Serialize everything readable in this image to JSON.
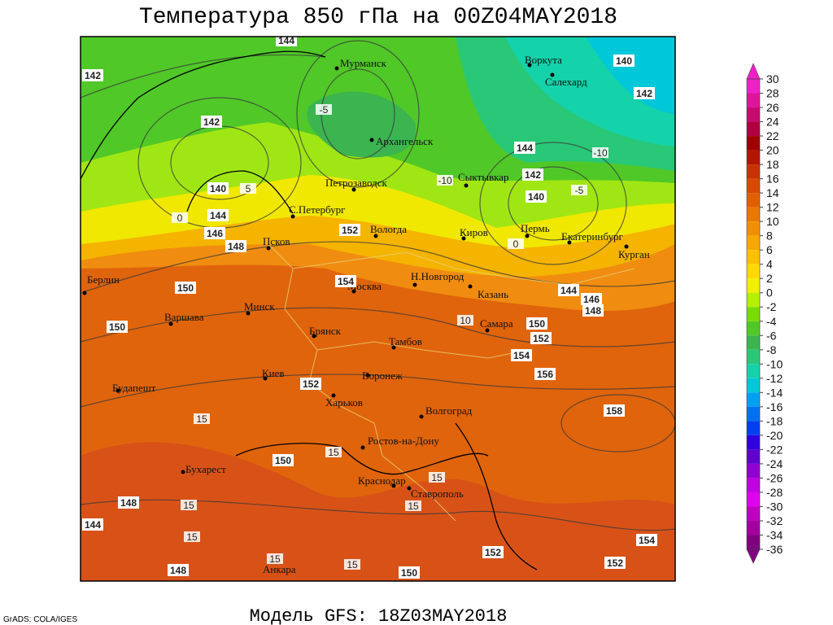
{
  "header": {
    "title": "Температура 850 гПа на 00Z04MAY2018"
  },
  "footer": {
    "model": "Модель GFS: 18Z03MAY2018",
    "credit": "GrADS: COLA/IGES"
  },
  "colorbar": {
    "ticks": [
      30,
      28,
      26,
      24,
      22,
      20,
      18,
      16,
      14,
      12,
      10,
      8,
      6,
      4,
      2,
      0,
      -2,
      -4,
      -6,
      -8,
      -10,
      -12,
      -14,
      -16,
      -18,
      -20,
      -22,
      -24,
      -26,
      -28,
      -30,
      -32,
      -34,
      -36
    ],
    "colors": [
      "#f020c8",
      "#e0149a",
      "#c80a6e",
      "#b00040",
      "#a00000",
      "#b41400",
      "#c83200",
      "#d74a00",
      "#e06000",
      "#e87800",
      "#f09000",
      "#f8a800",
      "#ffc000",
      "#ffd800",
      "#f0f000",
      "#b4f000",
      "#78dc00",
      "#50c828",
      "#3cb450",
      "#28c878",
      "#14d2aa",
      "#00c8d8",
      "#00a0f0",
      "#0070f0",
      "#0040f0",
      "#3000e0",
      "#6000d0",
      "#9000d0",
      "#c000e0",
      "#e000f0",
      "#c000c0",
      "#a000a0",
      "#800080"
    ]
  },
  "cities": [
    "Мурманск",
    "Воркута",
    "Салехард",
    "Архангельск",
    "Петрозаводск",
    "Сыктывкар",
    "С.Петербург",
    "Вологда",
    "Киров",
    "Пермь",
    "Екатеринбург",
    "Курган",
    "Псков",
    "Берлин",
    "Н.Новгород",
    "Москва",
    "Казань",
    "Минск",
    "Варшава",
    "Самара",
    "Брянск",
    "Тамбов",
    "Киев",
    "Воронеж",
    "Будапешт",
    "Харьков",
    "Волгоград",
    "Ростов-на-Дону",
    "Бухарест",
    "Краснодар",
    "Ставрополь",
    "Анкара"
  ],
  "height_labels": [
    142,
    144,
    140,
    142,
    142,
    144,
    142,
    140,
    140,
    144,
    146,
    148,
    152,
    154,
    150,
    144,
    146,
    148,
    150,
    152,
    154,
    156,
    150,
    152,
    158,
    150,
    148,
    144,
    154,
    152,
    150,
    148,
    152
  ],
  "temp_labels": [
    -10,
    -5,
    -10,
    10,
    15,
    15,
    15,
    15,
    15,
    15,
    15,
    15,
    0,
    -5,
    0,
    5
  ]
}
